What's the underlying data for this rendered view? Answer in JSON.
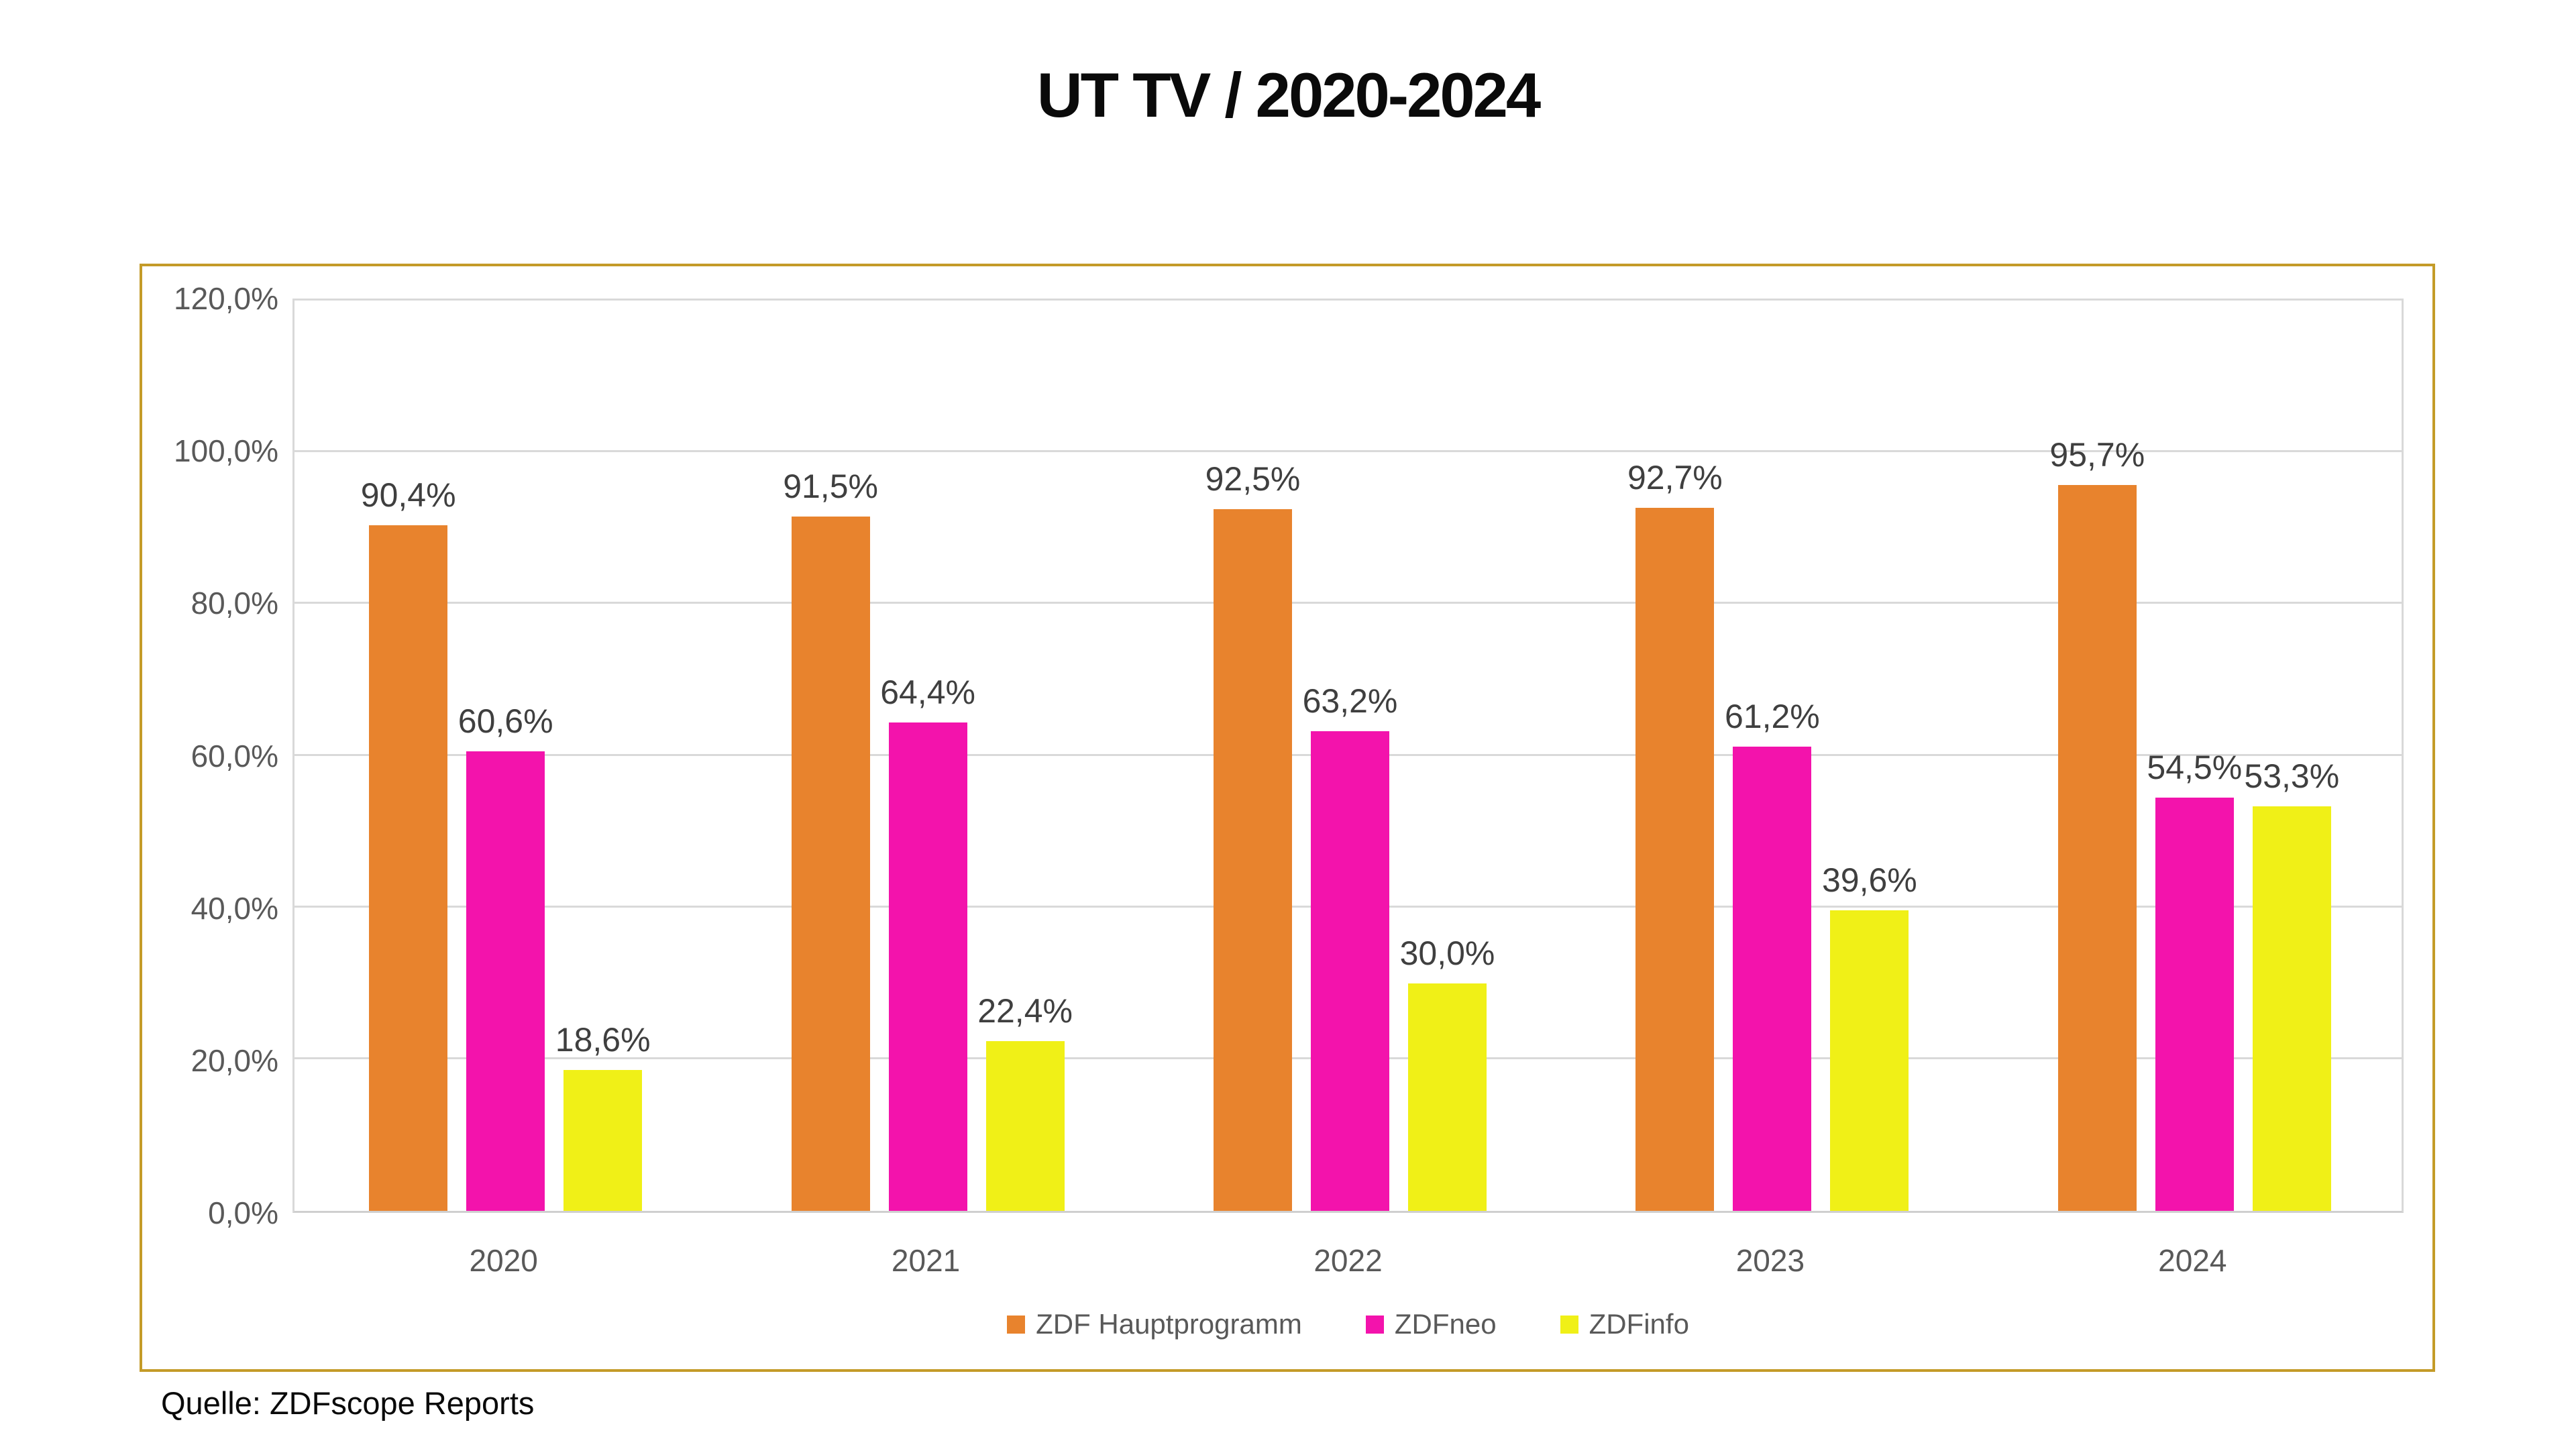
{
  "title": "UT TV / 2020-2024",
  "source": "Quelle: ZDFscope Reports",
  "colors": {
    "frame_border": "#C49B28",
    "grid": "#D9D9D9",
    "axis_text": "#595959",
    "data_label_text": "#3F3F3F",
    "title_text": "#0A0A0A"
  },
  "chart_data": {
    "type": "bar",
    "title": "UT TV / 2020-2024",
    "categories": [
      "2020",
      "2021",
      "2022",
      "2023",
      "2024"
    ],
    "series": [
      {
        "name": "ZDF Hauptprogramm",
        "color": "#E8832D",
        "values": [
          90.4,
          91.5,
          92.5,
          92.7,
          95.7
        ]
      },
      {
        "name": "ZDFneo",
        "color": "#F313AC",
        "values": [
          60.6,
          64.4,
          63.2,
          61.2,
          54.5
        ]
      },
      {
        "name": "ZDFinfo",
        "color": "#F0F017",
        "values": [
          18.6,
          22.4,
          30.0,
          39.6,
          53.3
        ]
      }
    ],
    "xlabel": "",
    "ylabel": "",
    "ylim": [
      0,
      120
    ],
    "ytick_step": 20,
    "ytick_labels": [
      "0,0%",
      "20,0%",
      "40,0%",
      "60,0%",
      "80,0%",
      "100,0%",
      "120,0%"
    ],
    "grid": true,
    "legend_position": "bottom",
    "data_labels": true,
    "decimal_separator": ",",
    "value_suffix": "%"
  }
}
